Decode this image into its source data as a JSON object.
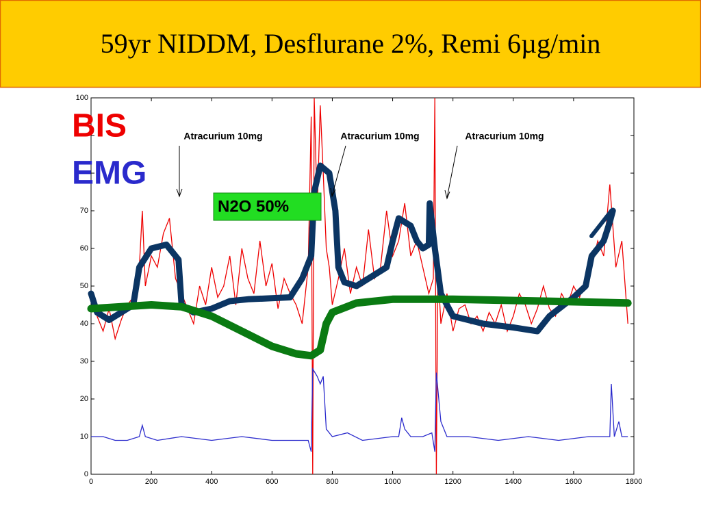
{
  "chart_data": {
    "type": "line",
    "title": "59yr NIDDM,   Desflurane 2%, Remi 6µg/min",
    "xlim": [
      0,
      1800
    ],
    "ylim": [
      0,
      100
    ],
    "xticks": [
      0,
      200,
      400,
      600,
      800,
      1000,
      1200,
      1400,
      1600,
      1800
    ],
    "yticks": [
      0,
      10,
      20,
      30,
      40,
      50,
      60,
      70,
      80,
      90,
      100
    ],
    "series": [
      {
        "name": "BIS",
        "color": "#ee0000",
        "x": [
          0,
          20,
          40,
          60,
          80,
          100,
          120,
          140,
          160,
          170,
          180,
          200,
          220,
          240,
          260,
          280,
          300,
          320,
          340,
          360,
          380,
          400,
          420,
          440,
          460,
          480,
          500,
          520,
          540,
          560,
          580,
          600,
          620,
          640,
          660,
          680,
          700,
          720,
          730,
          735,
          740,
          750,
          760,
          770,
          780,
          790,
          800,
          820,
          840,
          860,
          880,
          900,
          920,
          940,
          960,
          980,
          1000,
          1020,
          1040,
          1060,
          1080,
          1100,
          1120,
          1135,
          1140,
          1145,
          1150,
          1160,
          1180,
          1200,
          1220,
          1240,
          1260,
          1280,
          1300,
          1320,
          1340,
          1360,
          1380,
          1400,
          1420,
          1440,
          1460,
          1480,
          1500,
          1520,
          1540,
          1560,
          1580,
          1600,
          1620,
          1640,
          1660,
          1680,
          1700,
          1720,
          1740,
          1760,
          1780
        ],
        "values": [
          48,
          42,
          38,
          44,
          36,
          41,
          45,
          47,
          55,
          70,
          50,
          58,
          55,
          64,
          68,
          52,
          48,
          44,
          40,
          50,
          45,
          55,
          47,
          50,
          58,
          45,
          60,
          52,
          48,
          62,
          50,
          56,
          44,
          52,
          48,
          45,
          40,
          55,
          95,
          0,
          100,
          70,
          98,
          80,
          60,
          55,
          45,
          52,
          60,
          48,
          55,
          50,
          65,
          52,
          55,
          70,
          58,
          62,
          72,
          58,
          62,
          55,
          48,
          52,
          100,
          0,
          55,
          40,
          48,
          38,
          44,
          45,
          40,
          42,
          38,
          43,
          40,
          45,
          38,
          42,
          48,
          45,
          40,
          44,
          50,
          44,
          42,
          48,
          45,
          50,
          47,
          52,
          55,
          62,
          58,
          77,
          55,
          62,
          40
        ]
      },
      {
        "name": "EMG",
        "color": "#2a2acc",
        "x": [
          0,
          40,
          80,
          120,
          160,
          170,
          180,
          220,
          300,
          400,
          500,
          600,
          680,
          720,
          730,
          735,
          750,
          760,
          770,
          780,
          800,
          850,
          900,
          1000,
          1020,
          1030,
          1040,
          1060,
          1100,
          1130,
          1140,
          1145,
          1160,
          1180,
          1250,
          1350,
          1450,
          1550,
          1650,
          1700,
          1720,
          1725,
          1735,
          1750,
          1760,
          1780
        ],
        "values": [
          10,
          10,
          9,
          9,
          10,
          13,
          10,
          9,
          10,
          9,
          10,
          9,
          9,
          9,
          6,
          28,
          26,
          24,
          26,
          12,
          10,
          11,
          9,
          10,
          10,
          15,
          12,
          10,
          10,
          11,
          6,
          27,
          14,
          10,
          10,
          9,
          10,
          9,
          10,
          10,
          10,
          24,
          10,
          14,
          10,
          10
        ]
      }
    ],
    "overlays": [
      {
        "color": "#0b3563",
        "width": 9,
        "x": [
          0,
          20,
          60,
          100,
          140,
          160,
          200,
          250,
          290,
          300,
          340,
          400,
          460,
          520,
          660,
          700,
          730,
          740,
          760,
          790,
          810,
          820,
          840,
          880,
          920,
          980,
          1000,
          1020,
          1060,
          1080,
          1100,
          1120,
          1123,
          1140,
          1160,
          1200,
          1300,
          1400,
          1480,
          1520,
          1600,
          1640,
          1660,
          1700,
          1720,
          1730
        ],
        "values": [
          48,
          43,
          41,
          43,
          45,
          55,
          60,
          61,
          57,
          45,
          43,
          44,
          46,
          46.5,
          47,
          52,
          58,
          75,
          82,
          80,
          70,
          55,
          51,
          50,
          52,
          55,
          62,
          68,
          66,
          62,
          60,
          61,
          72,
          60,
          48,
          42,
          40,
          39,
          38,
          42,
          47,
          50,
          58,
          62,
          67,
          70
        ]
      },
      {
        "color": "#0a7a12",
        "width": 11,
        "x": [
          0,
          200,
          300,
          400,
          500,
          600,
          680,
          730,
          760,
          780,
          800,
          880,
          1000,
          1200,
          1500,
          1780
        ],
        "values": [
          44,
          45,
          44.5,
          42,
          38,
          34,
          32,
          31.5,
          33,
          40,
          43,
          45.5,
          46.5,
          46.5,
          46,
          45.5
        ]
      }
    ],
    "annotations": [
      "Atracurium 10mg",
      "Atracurium 10mg",
      "Atracurium 10mg",
      "N2O 50%"
    ]
  }
}
